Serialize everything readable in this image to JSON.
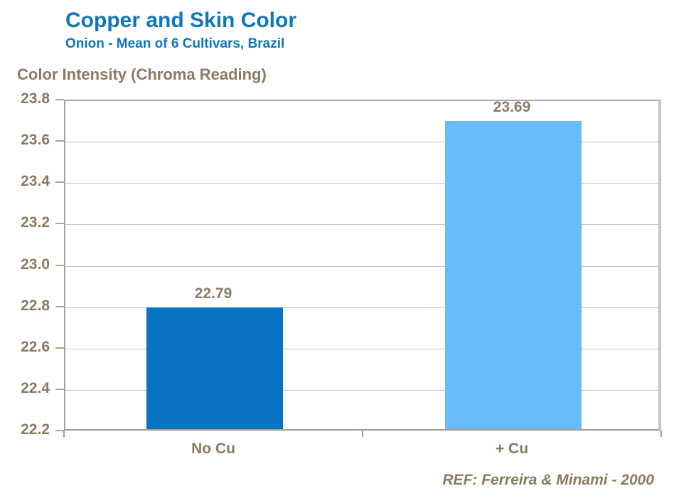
{
  "header": {
    "title": "Copper and Skin Color",
    "subtitle": "Onion - Mean of 6 Cultivars, Brazil"
  },
  "footer": {
    "reference": "REF: Ferreira & Minami - 2000"
  },
  "colors": {
    "title_blue": "#0F76BC",
    "label_brown": "#8A7A60",
    "gridline_gray": "#C9C6C1",
    "axis_gray": "#A8A49E",
    "bar_no_cu": "#0873C3",
    "bar_plus_cu": "#67BCF9"
  },
  "chart_data": {
    "type": "bar",
    "title": "Copper and Skin Color",
    "subtitle": "Onion - Mean of 6 Cultivars, Brazil",
    "categories": [
      "No Cu",
      "+ Cu"
    ],
    "values": [
      22.79,
      23.69
    ],
    "value_labels": [
      "22.79",
      "23.69"
    ],
    "bar_colors": [
      "#0873C3",
      "#67BCF9"
    ],
    "xlabel": "",
    "ylabel": "Color Intensity (Chroma Reading)",
    "ylim": [
      22.2,
      23.8
    ],
    "ytick_step": 0.2,
    "yticks": [
      "22.2",
      "22.4",
      "22.6",
      "22.8",
      "23.0",
      "23.2",
      "23.4",
      "23.6",
      "23.8"
    ],
    "grid": true,
    "legend": false,
    "annotation": "REF: Ferreira & Minami - 2000"
  }
}
